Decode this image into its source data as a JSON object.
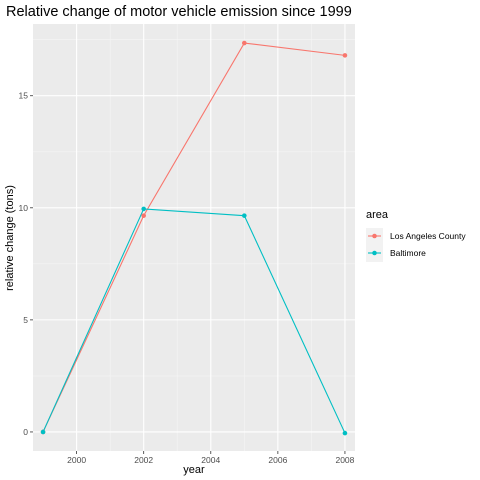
{
  "chart_data": {
    "type": "line",
    "title": "Relative change of motor vehicle emission since 1999",
    "xlabel": "year",
    "ylabel": "relative change (tons)",
    "x": [
      1999,
      2002,
      2005,
      2008
    ],
    "xlim": [
      1998.7,
      2008.3
    ],
    "ylim": [
      -0.85,
      18.2
    ],
    "xticks": [
      2000,
      2002,
      2004,
      2006,
      2008
    ],
    "yticks": [
      0,
      5,
      10,
      15
    ],
    "grid": true,
    "legend": {
      "title": "area",
      "placement": "right"
    },
    "series": [
      {
        "name": "Los Angeles County",
        "color": "#F8766D",
        "values": [
          0,
          9.65,
          17.35,
          16.8
        ]
      },
      {
        "name": "Baltimore",
        "color": "#00BFC4",
        "values": [
          0,
          9.95,
          9.65,
          -0.05
        ]
      }
    ]
  }
}
